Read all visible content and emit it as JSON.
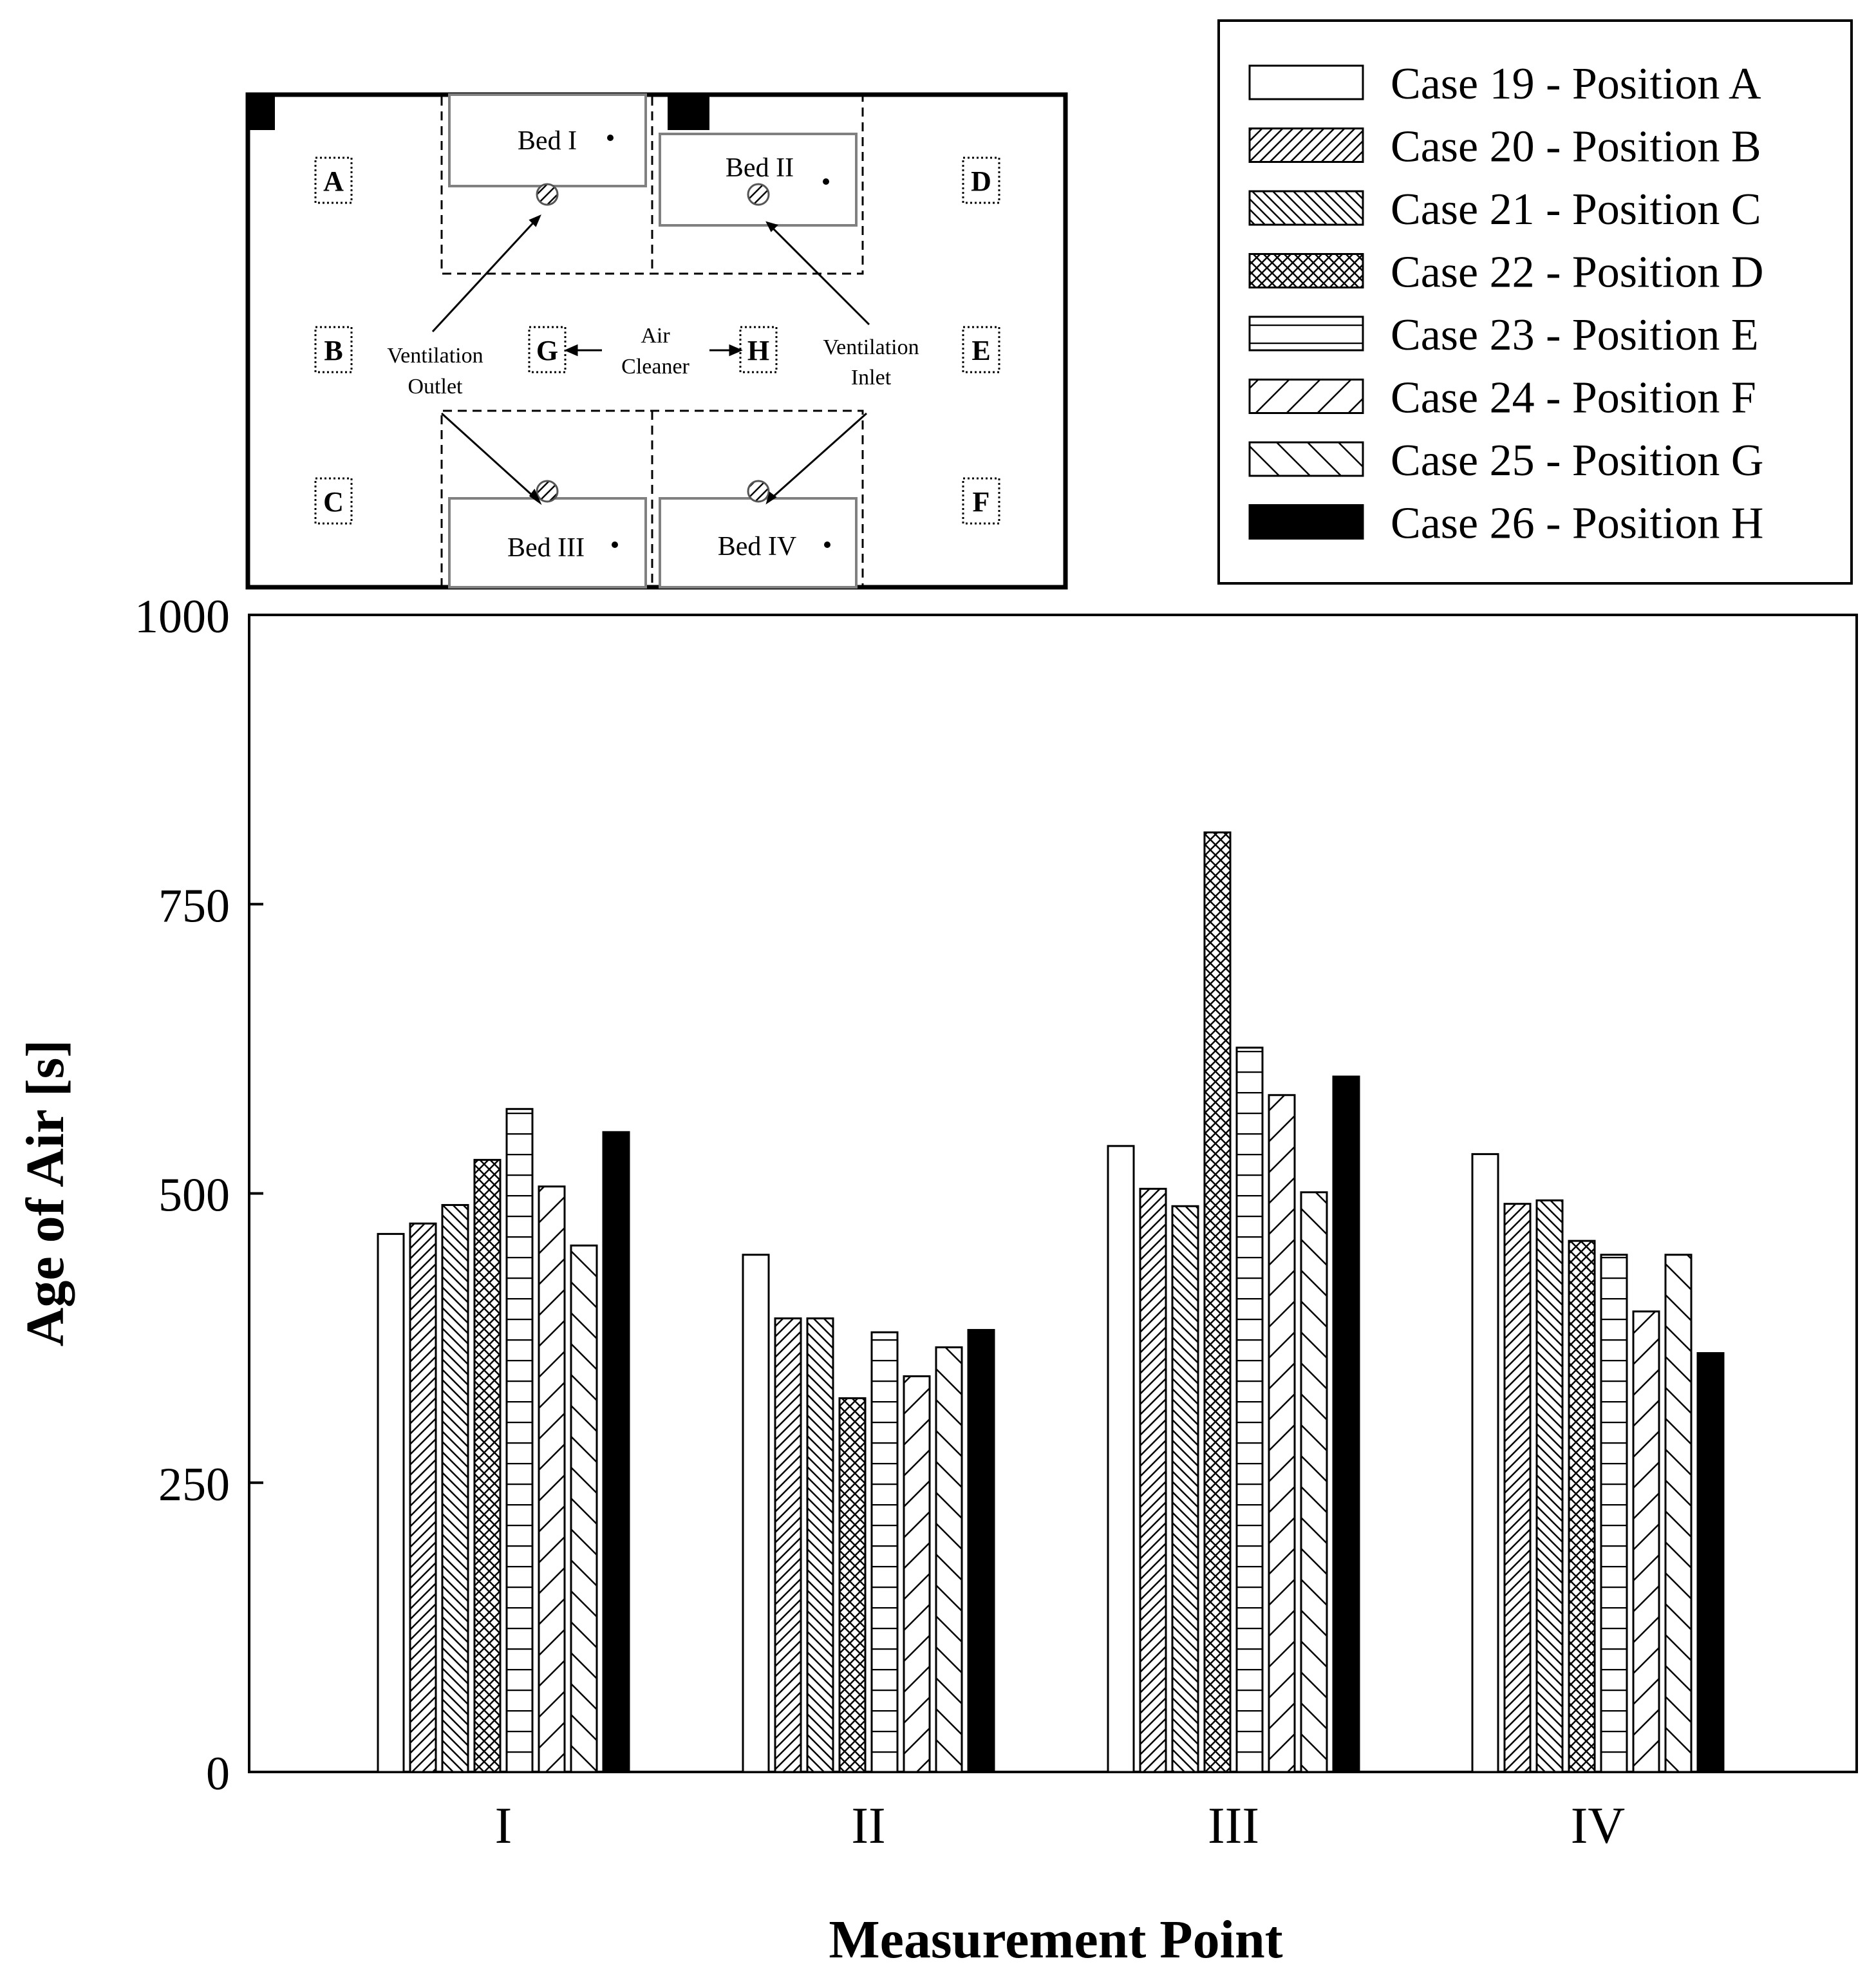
{
  "colors": {
    "ink": "#000000",
    "background": "#ffffff",
    "bed_outline": "#808080",
    "outlet_fill": "#cfcfcf"
  },
  "chart_data": {
    "type": "bar",
    "xlabel": "Measurement Point",
    "ylabel": "Age of Air [s]",
    "ylim": [
      0,
      1000
    ],
    "yticks": [
      "0",
      "250",
      "500",
      "750",
      "1000"
    ],
    "ytick_values": [
      0,
      250,
      500,
      750,
      1000
    ],
    "categories": [
      "I",
      "II",
      "III",
      "IV"
    ],
    "legend_position": "top-right",
    "series": [
      {
        "name": "Case 19 - Position A",
        "pattern": "blank",
        "values": [
          465,
          447,
          541,
          534
        ]
      },
      {
        "name": "Case 20 - Position B",
        "pattern": "diag-up",
        "values": [
          474,
          392,
          504,
          491
        ]
      },
      {
        "name": "Case 21 - Position C",
        "pattern": "diag-down",
        "values": [
          490,
          392,
          489,
          494
        ]
      },
      {
        "name": "Case 22 - Position D",
        "pattern": "crosshatch",
        "values": [
          529,
          323,
          812,
          459
        ]
      },
      {
        "name": "Case 23 - Position E",
        "pattern": "horizontal",
        "values": [
          573,
          380,
          626,
          447
        ]
      },
      {
        "name": "Case 24 - Position F",
        "pattern": "wide-up",
        "values": [
          506,
          342,
          585,
          398
        ]
      },
      {
        "name": "Case 25 - Position G",
        "pattern": "wide-down",
        "values": [
          455,
          367,
          501,
          447
        ]
      },
      {
        "name": "Case 26 - Position H",
        "pattern": "solid",
        "values": [
          553,
          382,
          601,
          362
        ]
      }
    ]
  },
  "inset": {
    "positions": [
      "A",
      "B",
      "C",
      "D",
      "E",
      "F",
      "G",
      "H"
    ],
    "beds": [
      "Bed I",
      "Bed II",
      "Bed III",
      "Bed IV"
    ],
    "ventilation_outlet": [
      "Ventilation",
      "Outlet"
    ],
    "ventilation_inlet": [
      "Ventilation",
      "Inlet"
    ],
    "air_cleaner": [
      "Air",
      "Cleaner"
    ]
  }
}
